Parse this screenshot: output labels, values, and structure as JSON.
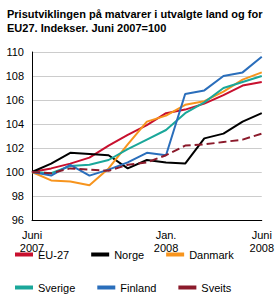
{
  "chart_data": {
    "type": "line",
    "title": "Prisutviklingen på matvarer i utvalgte land og for EU27. Indekser. Juni 2007=100",
    "categories": [
      "Juni\n2007",
      null,
      null,
      null,
      null,
      null,
      null,
      "Jan.\n2008",
      null,
      null,
      null,
      null,
      "Juni\n2008"
    ],
    "series": [
      {
        "name": "EU-27",
        "color": "#c8102e",
        "line_style": "solid",
        "values": [
          100,
          100.3,
          100.7,
          101.2,
          102.2,
          103.1,
          103.9,
          104.9,
          105.2,
          105.7,
          106.4,
          107.2,
          107.5
        ]
      },
      {
        "name": "Norge",
        "color": "#000000",
        "line_style": "solid",
        "values": [
          100,
          100.7,
          101.6,
          101.5,
          101.4,
          100.3,
          101.0,
          100.8,
          100.7,
          102.8,
          103.2,
          104.2,
          104.9
        ]
      },
      {
        "name": "Danmark",
        "color": "#f7941d",
        "line_style": "solid",
        "values": [
          100,
          99.3,
          99.2,
          98.9,
          100.3,
          102.3,
          104.2,
          104.7,
          105.6,
          105.9,
          106.7,
          107.7,
          108.3
        ]
      },
      {
        "name": "Sverige",
        "color": "#1aa79a",
        "line_style": "solid",
        "values": [
          100,
          99.9,
          100.5,
          100.6,
          101.0,
          101.9,
          102.7,
          103.5,
          104.9,
          105.8,
          107.0,
          107.5,
          108.0
        ]
      },
      {
        "name": "Finland",
        "color": "#2a6ebb",
        "line_style": "solid",
        "values": [
          100,
          99.7,
          100.6,
          99.7,
          100.2,
          100.8,
          101.6,
          101.4,
          106.5,
          106.8,
          108.0,
          108.3,
          109.6
        ]
      },
      {
        "name": "Sveits",
        "color": "#8b1a2b",
        "line_style": "dashed",
        "values": [
          100,
          99.9,
          100.3,
          100.2,
          100.1,
          100.6,
          100.8,
          101.4,
          102.2,
          102.3,
          102.5,
          102.7,
          103.2
        ]
      }
    ],
    "ylim": [
      96,
      110
    ],
    "yticks": [
      96,
      98,
      100,
      102,
      104,
      106,
      108,
      110
    ],
    "grid": true,
    "legend": "bottom"
  }
}
